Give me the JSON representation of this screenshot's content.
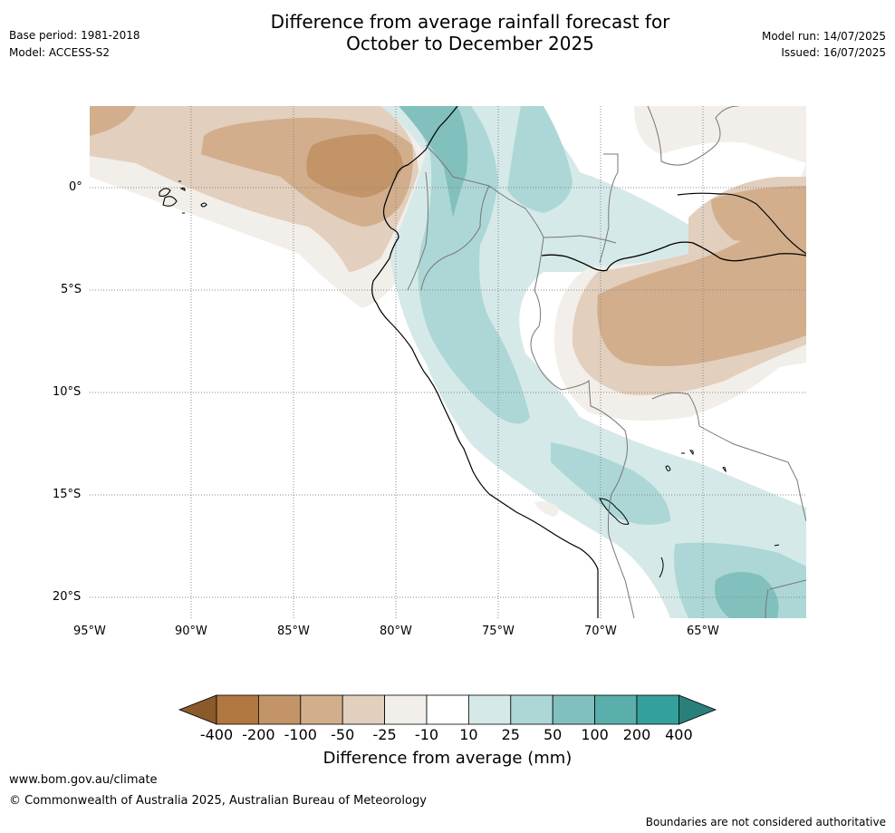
{
  "title_line1": "Difference from average rainfall forecast for",
  "title_line2": "October to December 2025",
  "base_period": "Base period: 1981-2018",
  "model": "Model: ACCESS-S2",
  "model_run": "Model run: 14/07/2025",
  "issued": "Issued: 16/07/2025",
  "lat_labels": [
    "0°",
    "5°S",
    "10°S",
    "15°S",
    "20°S"
  ],
  "lon_labels": [
    "95°W",
    "90°W",
    "85°W",
    "80°W",
    "75°W",
    "70°W",
    "65°W"
  ],
  "colorbar": {
    "ticks": [
      "-400",
      "-200",
      "-100",
      "-50",
      "-25",
      "-10",
      "10",
      "25",
      "50",
      "100",
      "200",
      "400"
    ],
    "colors": [
      "#8a5a2b",
      "#b07840",
      "#c29468",
      "#d2ae8c",
      "#e2cfbd",
      "#f2eee9",
      "#ffffff",
      "#d5e9e8",
      "#acd7d6",
      "#82c0be",
      "#5aaeab",
      "#35a09b",
      "#2a7f7b"
    ],
    "label": "Difference from average (mm)"
  },
  "footer_url": "www.bom.gov.au/climate",
  "footer_copyright": "© Commonwealth of Australia 2025, Australian Bureau of Meteorology",
  "disclaimer": "Boundaries are not considered authoritative"
}
